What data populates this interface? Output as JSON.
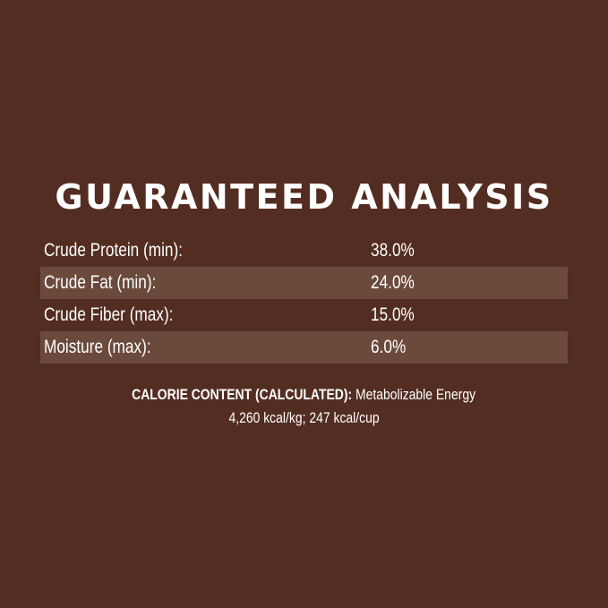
{
  "title": "GUARANTEED ANALYSIS",
  "rows": [
    {
      "label": "Crude Protein (min):",
      "value": "38.0%"
    },
    {
      "label": "Crude Fat (min):",
      "value": "24.0%"
    },
    {
      "label": "Crude Fiber (max):",
      "value": "15.0%"
    },
    {
      "label": "Moisture (max):",
      "value": "6.0%"
    }
  ],
  "calorie": {
    "heading": "CALORIE CONTENT (CALCULATED):",
    "line1_text": " Metabolizable Energy",
    "line2": "4,260 kcal/kg; 247 kcal/cup"
  },
  "colors": {
    "background": "#532d21",
    "stripe": "#6b4a3c",
    "text": "#ffffff"
  }
}
